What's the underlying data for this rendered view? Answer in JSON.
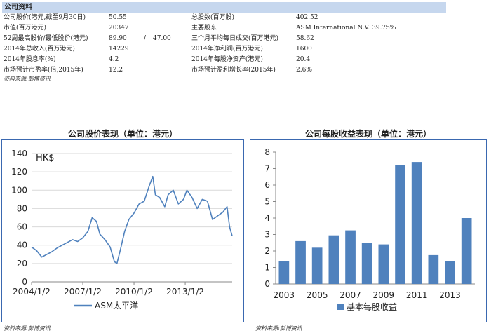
{
  "info": {
    "header": "公司资料",
    "rows": [
      {
        "l1": "公司股价(港元,截至9月30日)",
        "v1": "50.55",
        "l2": "总股数(百万股)",
        "v2": "402.52"
      },
      {
        "l1": "市值(百万港元)",
        "v1": "20347",
        "l2": "主要股东",
        "v2": "ASM International N.V. 39.75%"
      },
      {
        "l1": "52周最高股价/最低股价(港元)",
        "v1": "89.90",
        "sep": "/",
        "v1b": "47.00",
        "l2": "三个月平均每日成交(百万港元)",
        "v2": "58.62"
      },
      {
        "l1": "2014年总收入(百万港元)",
        "v1": "14229",
        "l2": "2014年净利润(百万港元)",
        "v2": "1600"
      },
      {
        "l1": "2014年股息率(%)",
        "v1": "4.2",
        "l2": "2014年每股净资产(港元)",
        "v2": "20.4"
      },
      {
        "l1": "市场预计市盈率(倍,2015年)",
        "v1": "12.2",
        "l2": "市场预计盈利增长率(2015年)",
        "v2": "2.6%"
      }
    ],
    "source": "资料来源:彭博资讯"
  },
  "left_chart": {
    "title": "公司股价表现（单位：港元）",
    "source": "资料来源:彭博资讯"
  },
  "right_chart": {
    "title": "公司每股收益表现（单位：港元）",
    "source": "资料来源:彭博资讯"
  },
  "chart_data": [
    {
      "type": "line",
      "unit_label": "HK$",
      "ylim": [
        0,
        140
      ],
      "yticks": [
        0,
        20,
        40,
        60,
        80,
        100,
        120,
        140
      ],
      "xtick_labels": [
        "2004/1/2",
        "2007/1/2",
        "2010/1/2",
        "2013/1/2"
      ],
      "xtick_dates": [
        2004.0,
        2007.0,
        2010.0,
        2013.0
      ],
      "xlim": [
        2004.0,
        2015.75
      ],
      "grid": true,
      "legend_position": "bottom",
      "series": [
        {
          "name": "ASM太平洋",
          "color": "#4f81bd",
          "x": [
            2004.0,
            2004.3,
            2004.6,
            2004.9,
            2005.2,
            2005.5,
            2005.8,
            2006.1,
            2006.4,
            2006.7,
            2007.0,
            2007.3,
            2007.55,
            2007.8,
            2008.0,
            2008.3,
            2008.6,
            2008.85,
            2009.0,
            2009.2,
            2009.45,
            2009.7,
            2010.0,
            2010.3,
            2010.6,
            2010.9,
            2011.1,
            2011.25,
            2011.5,
            2011.8,
            2012.0,
            2012.3,
            2012.6,
            2012.9,
            2013.1,
            2013.4,
            2013.7,
            2014.0,
            2014.3,
            2014.6,
            2014.9,
            2015.2,
            2015.45,
            2015.6,
            2015.75
          ],
          "values": [
            38,
            34,
            27,
            30,
            33,
            37,
            40,
            43,
            46,
            44,
            48,
            55,
            70,
            66,
            52,
            46,
            38,
            22,
            20,
            35,
            55,
            68,
            75,
            85,
            88,
            105,
            115,
            95,
            92,
            82,
            95,
            100,
            85,
            90,
            100,
            92,
            80,
            90,
            88,
            68,
            72,
            76,
            82,
            60,
            50
          ]
        }
      ]
    },
    {
      "type": "bar",
      "title": "",
      "categories": [
        "2003",
        "2004",
        "2005",
        "2006",
        "2007",
        "2008",
        "2009",
        "2010",
        "2011",
        "2012",
        "2013",
        "2014"
      ],
      "xtick_labels": [
        "2003",
        "2005",
        "2007",
        "2009",
        "2011",
        "2013"
      ],
      "values": [
        1.4,
        2.6,
        2.2,
        2.95,
        3.25,
        2.5,
        2.4,
        7.2,
        7.4,
        1.75,
        1.4,
        4.0
      ],
      "ylim": [
        0,
        8
      ],
      "yticks": [
        0,
        1,
        2,
        3,
        4,
        5,
        6,
        7,
        8
      ],
      "grid": false,
      "legend_position": "bottom",
      "series": [
        {
          "name": "基本每股收益",
          "color": "#4f81bd"
        }
      ]
    }
  ]
}
